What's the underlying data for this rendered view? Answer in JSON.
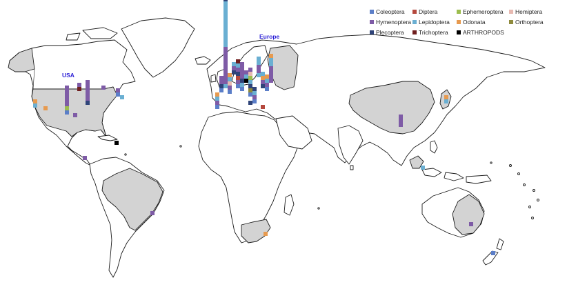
{
  "region_labels": {
    "usa": "USA",
    "europe": "Europe"
  },
  "legend": [
    {
      "label": "Coleoptera",
      "color": "#5b7ec8"
    },
    {
      "label": "Diptera",
      "color": "#b5483d"
    },
    {
      "label": "Ephemeroptera",
      "color": "#9cbd4e"
    },
    {
      "label": "Hemiptera",
      "color": "#e7b9b1"
    },
    {
      "label": "Hymenoptera",
      "color": "#7e5ba6"
    },
    {
      "label": "Lepidoptera",
      "color": "#6aafd2"
    },
    {
      "label": "Odonata",
      "color": "#e79a4f"
    },
    {
      "label": "Orthoptera",
      "color": "#8e8a3c"
    },
    {
      "label": "Plecoptera",
      "color": "#2f4479"
    },
    {
      "label": "Trichoptera",
      "color": "#6f1e1e"
    },
    {
      "label": "ARTHROPODS",
      "color": "#000000"
    }
  ],
  "colors": {
    "land": "#ffffff",
    "studied_land": "#d3d3d3",
    "outline": "#1a1a1a",
    "label": "#2b1fd6"
  }
}
